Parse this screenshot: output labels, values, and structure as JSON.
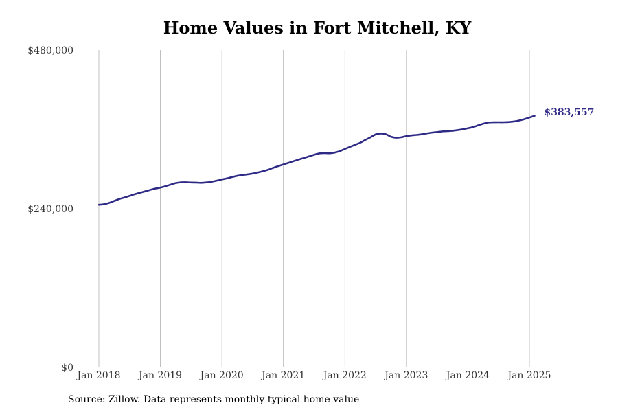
{
  "chart_data": {
    "type": "line",
    "title": "Home Values in Fort Mitchell, KY",
    "xlabel": "",
    "ylabel": "",
    "ylim": [
      0,
      480000
    ],
    "yticks": [
      {
        "value": 0,
        "label": "$0"
      },
      {
        "value": 240000,
        "label": "$240,000"
      },
      {
        "value": 480000,
        "label": "$480,000"
      }
    ],
    "xticks": [
      {
        "value": "2018-01",
        "label": "Jan 2018"
      },
      {
        "value": "2019-01",
        "label": "Jan 2019"
      },
      {
        "value": "2020-01",
        "label": "Jan 2020"
      },
      {
        "value": "2021-01",
        "label": "Jan 2021"
      },
      {
        "value": "2022-01",
        "label": "Jan 2022"
      },
      {
        "value": "2023-01",
        "label": "Jan 2023"
      },
      {
        "value": "2024-01",
        "label": "Jan 2024"
      },
      {
        "value": "2025-01",
        "label": "Jan 2025"
      }
    ],
    "xlim": [
      "2017-11",
      "2025-10"
    ],
    "grid": "vertical",
    "line_color": "#2e2a86",
    "end_label": "$383,557",
    "series": [
      {
        "x": [
          "2018-01",
          "2018-02",
          "2018-03",
          "2018-04",
          "2018-05",
          "2018-06",
          "2018-07",
          "2018-08",
          "2018-09",
          "2018-10",
          "2018-11",
          "2018-12",
          "2019-01",
          "2019-02",
          "2019-03",
          "2019-04",
          "2019-05",
          "2019-06",
          "2019-07",
          "2019-08",
          "2019-09",
          "2019-10",
          "2019-11",
          "2019-12",
          "2020-01",
          "2020-02",
          "2020-03",
          "2020-04",
          "2020-05",
          "2020-06",
          "2020-07",
          "2020-08",
          "2020-09",
          "2020-10",
          "2020-11",
          "2020-12",
          "2021-01",
          "2021-02",
          "2021-03",
          "2021-04",
          "2021-05",
          "2021-06",
          "2021-07",
          "2021-08",
          "2021-09",
          "2021-10",
          "2021-11",
          "2021-12",
          "2022-01",
          "2022-02",
          "2022-03",
          "2022-04",
          "2022-05",
          "2022-06",
          "2022-07",
          "2022-08",
          "2022-09",
          "2022-10",
          "2022-11",
          "2022-12",
          "2023-01",
          "2023-02",
          "2023-03",
          "2023-04",
          "2023-05",
          "2023-06",
          "2023-07",
          "2023-08",
          "2023-09",
          "2023-10",
          "2023-11",
          "2023-12",
          "2024-01",
          "2024-02",
          "2024-03",
          "2024-04",
          "2024-05",
          "2024-06",
          "2024-07",
          "2024-08",
          "2024-09",
          "2024-10",
          "2024-11",
          "2024-12",
          "2025-01",
          "2025-02"
        ],
        "values": [
          246000,
          246800,
          248800,
          251800,
          254800,
          257000,
          259500,
          262000,
          264200,
          266300,
          268500,
          270500,
          272000,
          274000,
          276500,
          278800,
          280000,
          280100,
          279700,
          279500,
          279200,
          279800,
          280800,
          282500,
          284300,
          286000,
          288000,
          289800,
          291000,
          292000,
          293200,
          294800,
          296800,
          299000,
          301800,
          304500,
          307000,
          309500,
          312000,
          314500,
          316800,
          319200,
          321700,
          323700,
          324200,
          324000,
          325000,
          327200,
          330500,
          333700,
          336800,
          340000,
          344200,
          348200,
          352500,
          353800,
          352700,
          349000,
          347500,
          348200,
          350000,
          351000,
          351700,
          352700,
          354000,
          355200,
          356000,
          357000,
          357500,
          358000,
          359000,
          360200,
          361800,
          363500,
          366200,
          368700,
          370500,
          370800,
          370900,
          370900,
          371200,
          372000,
          373500,
          375500,
          378000,
          380500
        ]
      }
    ]
  },
  "source_note": "Source: Zillow. Data represents monthly typical home value"
}
